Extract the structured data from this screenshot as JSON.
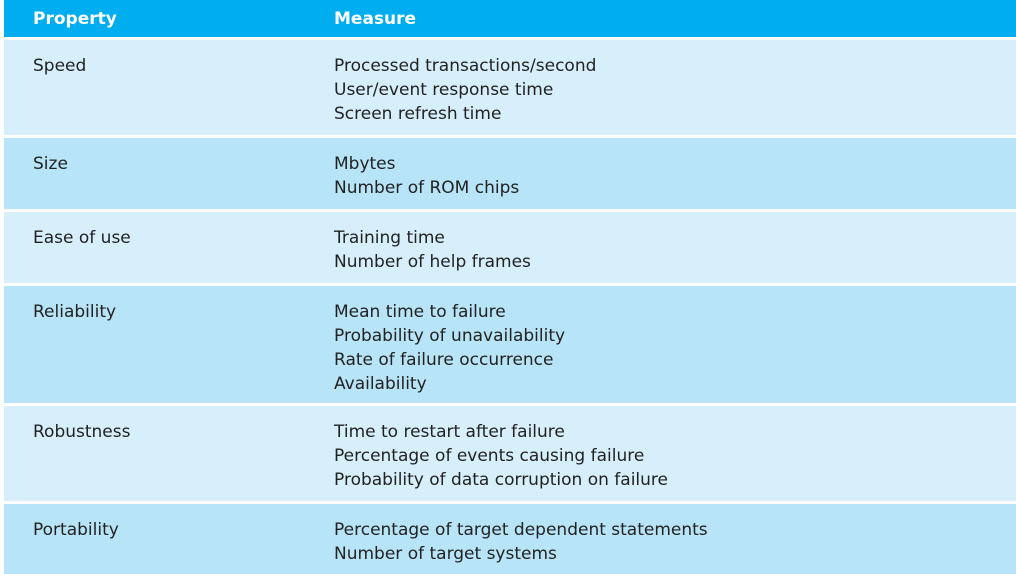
{
  "header": {
    "property": "Property",
    "measure": "Measure"
  },
  "rows": [
    {
      "property": "Speed",
      "measures": [
        "Processed transactions/second",
        "User/event response time",
        "Screen refresh time"
      ]
    },
    {
      "property": "Size",
      "measures": [
        "Mbytes",
        "Number of ROM chips"
      ]
    },
    {
      "property": "Ease of use",
      "measures": [
        "Training time",
        "Number of help frames"
      ]
    },
    {
      "property": "Reliability",
      "measures": [
        "Mean time to failure",
        "Probability of unavailability",
        "Rate of failure occurrence",
        "Availability"
      ]
    },
    {
      "property": "Robustness",
      "measures": [
        "Time to restart after failure",
        "Percentage of events causing failure",
        "Probability of data corruption on failure"
      ]
    },
    {
      "property": "Portability",
      "measures": [
        "Percentage of target dependent statements",
        "Number of target systems"
      ]
    }
  ],
  "colors": {
    "header_bg": "#00aeef",
    "row_light": "#d6effa",
    "row_dark": "#b8e4f8"
  }
}
